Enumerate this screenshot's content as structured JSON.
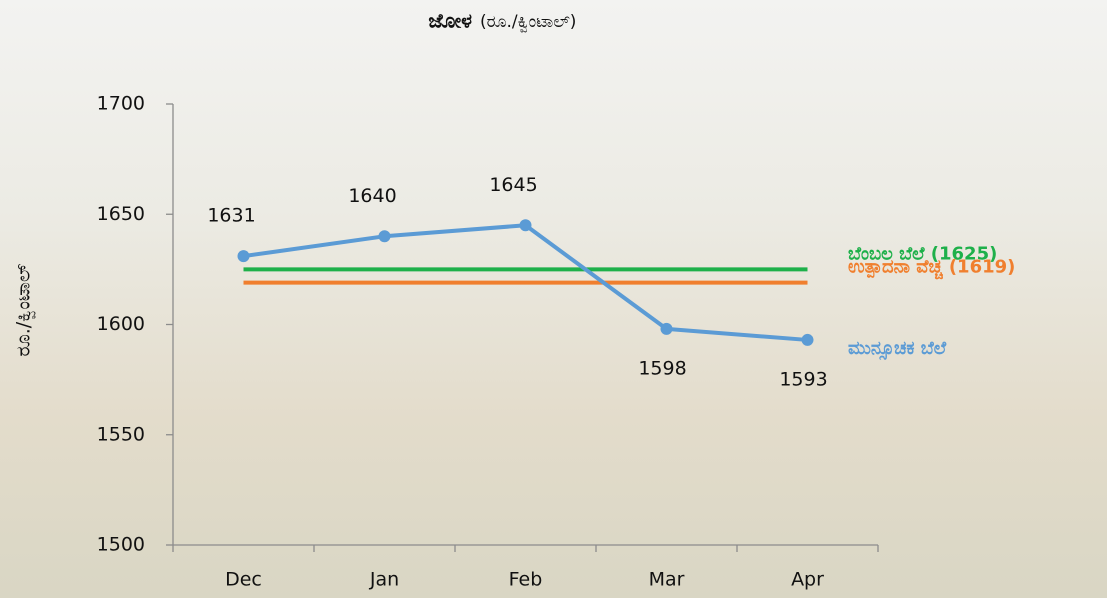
{
  "chart_data": {
    "type": "line",
    "title": "ಜೋಳ",
    "title_unit": "(ರೂ./ಕ್ವಿಂಟಾಲ್)",
    "y_label": "ರೂ./ಕ್ವಿಂಟಾಲ್",
    "categories": [
      "Dec",
      "Jan",
      "Feb",
      "Mar",
      "Apr"
    ],
    "series": [
      {
        "name": "ಬೆಂಬಲ ಬೆಲೆ (1625)",
        "color": "#1eb04a",
        "values": [
          1625,
          1625,
          1625,
          1625,
          1625
        ]
      },
      {
        "name": "ಉತ್ಪಾದನಾ ವೆಚ್ಚ (1619)",
        "color": "#f07f2e",
        "values": [
          1619,
          1619,
          1619,
          1619,
          1619
        ]
      },
      {
        "name": "ಮುನ್ಸೂಚಕ ಬೆಲೆ",
        "color": "#5b9bd5",
        "values": [
          1631,
          1640,
          1645,
          1598,
          1593
        ],
        "data_labels": true
      }
    ],
    "ylim": [
      1500,
      1700
    ],
    "yticks": [
      1500,
      1550,
      1600,
      1650,
      1700
    ],
    "grid": false
  }
}
